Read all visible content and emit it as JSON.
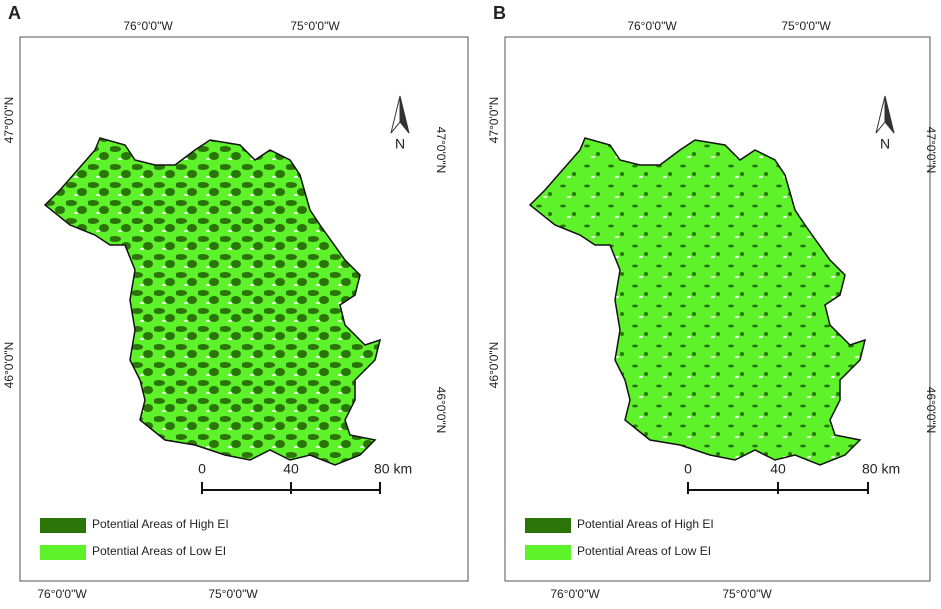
{
  "panels": [
    {
      "label": "A",
      "top_lon": [
        "76°0'0\"W",
        "75°0'0\"W"
      ],
      "bottom_lon": [
        "76°0'0\"W",
        "75°0'0\"W"
      ],
      "left_lat": [
        "47°0'0\"N",
        "46°0'0\"N"
      ],
      "right_lat": [
        "47°0'0\"N",
        "46°0'0\"N"
      ],
      "north": "N",
      "scale": [
        "0",
        "40",
        "80 km"
      ],
      "legend": [
        {
          "label": "Potential Areas of High EI",
          "color": "#2b7508"
        },
        {
          "label": "Potential Areas of Low EI",
          "color": "#5df22a"
        }
      ]
    },
    {
      "label": "B",
      "top_lon": [
        "76°0'0\"W",
        "75°0'0\"W"
      ],
      "bottom_lon": [
        "76°0'0\"W",
        "75°0'0\"W"
      ],
      "left_lat": [
        "47°0'0\"N",
        "46°0'0\"N"
      ],
      "right_lat": [
        "47°0'0\"N",
        "46°0'0\"N"
      ],
      "north": "N",
      "scale": [
        "0",
        "40",
        "80 km"
      ],
      "legend": [
        {
          "label": "Potential Areas of High EI",
          "color": "#2b7508"
        },
        {
          "label": "Potential Areas of Low EI",
          "color": "#5df22a"
        }
      ]
    }
  ]
}
